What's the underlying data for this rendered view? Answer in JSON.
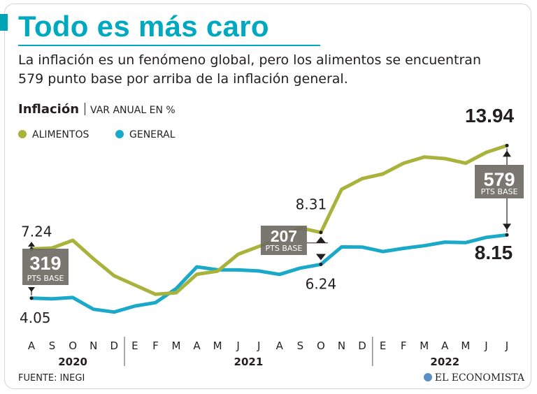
{
  "header": {
    "title": "Todo es más caro",
    "subtitle": "La inflación es un fenómeno global, pero los alimentos se encuentran 579 punto base por arriba de la inflación general.",
    "metric_name": "Inflación",
    "metric_unit": "VAR ANUAL EN %"
  },
  "legend": {
    "alimentos": "ALIMENTOS",
    "general": "GENERAL"
  },
  "footer": {
    "source": "FUENTE: INEGI",
    "brand": "EL ECONOMISTA"
  },
  "colors": {
    "alimentos": "#a9b33c",
    "general": "#1aa9c9",
    "title": "#00a9c0",
    "badge": "#6f6a64"
  },
  "chart_data": {
    "type": "line",
    "title": "Inflación",
    "ylabel": "VAR ANUAL EN %",
    "xlabel": "",
    "x": [
      "A",
      "S",
      "O",
      "N",
      "D",
      "E",
      "F",
      "M",
      "A",
      "M",
      "J",
      "J",
      "A",
      "S",
      "O",
      "N",
      "D",
      "E",
      "F",
      "M",
      "A",
      "M",
      "J",
      "J"
    ],
    "years": [
      {
        "label": "2020",
        "start": 0,
        "end": 4
      },
      {
        "label": "2021",
        "start": 5,
        "end": 16
      },
      {
        "label": "2022",
        "start": 17,
        "end": 23
      }
    ],
    "ylim": [
      3,
      15
    ],
    "grid": false,
    "legend_position": "top-left",
    "series": [
      {
        "name": "ALIMENTOS",
        "color": "#a9b33c",
        "values": [
          7.24,
          7.3,
          7.8,
          6.6,
          5.5,
          4.9,
          4.3,
          4.4,
          5.6,
          5.8,
          6.9,
          7.4,
          7.9,
          8.6,
          8.31,
          11.1,
          11.8,
          12.1,
          12.8,
          13.2,
          13.1,
          12.8,
          13.5,
          13.94
        ]
      },
      {
        "name": "GENERAL",
        "color": "#1aa9c9",
        "values": [
          4.05,
          4.01,
          4.09,
          3.33,
          3.15,
          3.54,
          3.76,
          4.67,
          6.08,
          5.89,
          5.88,
          5.81,
          5.59,
          6.0,
          6.24,
          7.37,
          7.36,
          7.07,
          7.28,
          7.45,
          7.68,
          7.65,
          7.99,
          8.15
        ]
      }
    ],
    "annotations": [
      {
        "index": 0,
        "top_value": "7.24",
        "bottom_value": "4.05",
        "gap": "319",
        "gap_unit": "PTS BASE"
      },
      {
        "index": 14,
        "top_value": "8.31",
        "bottom_value": "6.24",
        "gap": "207",
        "gap_unit": "PTS BASE"
      },
      {
        "index": 23,
        "top_value": "13.94",
        "bottom_value": "8.15",
        "gap": "579",
        "gap_unit": "PTS BASE"
      }
    ]
  }
}
